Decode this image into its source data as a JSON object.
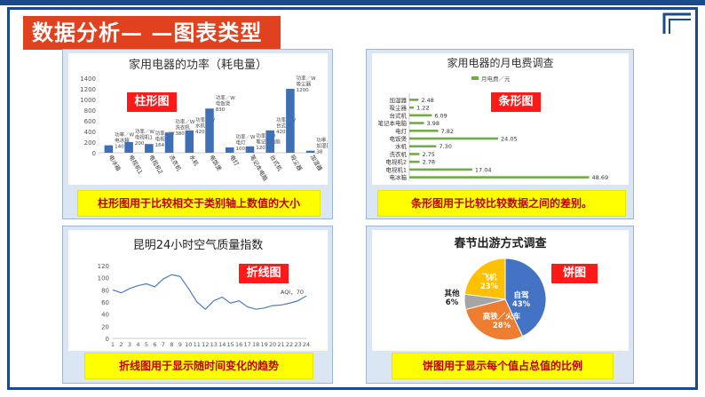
{
  "slide": {
    "title": "数据分析— —图表类型"
  },
  "panels": {
    "bar": {
      "title": "家用电器的功率（耗电量）",
      "tag": "柱形图",
      "caption": "柱形图用于比较相交于类别轴上数值的大小"
    },
    "hbar": {
      "title": "家用电器的月电费调查",
      "tag": "条形图",
      "caption": "条形图用于比较比较数据之间的差别。"
    },
    "line": {
      "title": "昆明24小时空气质量指数",
      "tag": "折线图",
      "caption": "折线图用于显示随时间变化的趋势"
    },
    "pie": {
      "title": "春节出游方式调查",
      "tag": "饼图",
      "caption": "饼图用于显示每个值占总值的比例"
    }
  },
  "colors": {
    "title_bg": "#e0411f",
    "frame": "#1a4a8c",
    "tag_bg": "#ff1a1a",
    "caption_bg": "#ffff00",
    "caption_text": "#c00000",
    "bar": "#3f6fb5",
    "hbar": "#70ad47",
    "line": "#4a7ebb",
    "pie": [
      "#4472c4",
      "#ed7d31",
      "#a5a5a5",
      "#ffc000"
    ]
  },
  "chart_data": [
    {
      "type": "bar",
      "title": "家用电器的功率（耗电量）",
      "categories": [
        "电冰箱",
        "电视机1",
        "电视机2",
        "洗衣机",
        "水机",
        "电饭煲",
        "电灯",
        "笔记本电脑",
        "台式机",
        "吸尘器",
        "加湿器"
      ],
      "values": [
        140,
        200,
        164,
        380,
        420,
        830,
        100,
        120,
        420,
        1200,
        38
      ],
      "ylim": [
        0,
        1400
      ],
      "yticks": [
        0,
        200,
        400,
        600,
        800,
        1000,
        1200,
        1400
      ],
      "data_labels": [
        "功率／W，电冰箱，140",
        "功率／W，电视机1，200",
        "功率／W，电视机2，164",
        "功率／W，洗衣机，380",
        "功率／W，水机，420",
        "功率／W，电饭煲，830",
        "功率／W，电灯，100",
        "功率／W，笔记本电脑，120",
        "功率／W，台式机，420",
        "功率／W，吸尘器，1200",
        "功率／W，加湿器，38"
      ]
    },
    {
      "type": "bar",
      "orientation": "horizontal",
      "title": "家用电器的月电费调查",
      "legend": "月电费／元",
      "categories": [
        "加湿器",
        "吸尘器",
        "台式机",
        "笔记本电脑",
        "电灯",
        "电饭煲",
        "水机",
        "洗衣机",
        "电视机2",
        "电视机1",
        "电冰箱"
      ],
      "values": [
        2.48,
        1.22,
        6.09,
        3.98,
        7.82,
        24.05,
        7.3,
        2.75,
        2.78,
        17.04,
        48.69
      ],
      "xlim": [
        0,
        50
      ]
    },
    {
      "type": "line",
      "title": "昆明24小时空气质量指数",
      "x": [
        1,
        2,
        3,
        4,
        5,
        6,
        7,
        8,
        9,
        10,
        11,
        12,
        13,
        14,
        15,
        16,
        17,
        18,
        19,
        20,
        21,
        22,
        23,
        24
      ],
      "series": [
        {
          "name": "AQI",
          "values": [
            80,
            75,
            82,
            87,
            90,
            85,
            98,
            105,
            102,
            82,
            60,
            48,
            62,
            68,
            58,
            62,
            52,
            48,
            50,
            54,
            55,
            58,
            62,
            70
          ],
          "end_label": "AQI，70"
        }
      ],
      "ylim": [
        0,
        120
      ],
      "yticks": [
        0,
        20,
        40,
        60,
        80,
        100,
        120
      ]
    },
    {
      "type": "pie",
      "title": "春节出游方式调查",
      "slices": [
        {
          "name": "自驾",
          "value": 43,
          "label": "43%"
        },
        {
          "name": "高铁／火车",
          "value": 28,
          "label": "28%"
        },
        {
          "name": "其他",
          "value": 6,
          "label": "6%"
        },
        {
          "name": "飞机",
          "value": 23,
          "label": "23%"
        }
      ]
    }
  ]
}
